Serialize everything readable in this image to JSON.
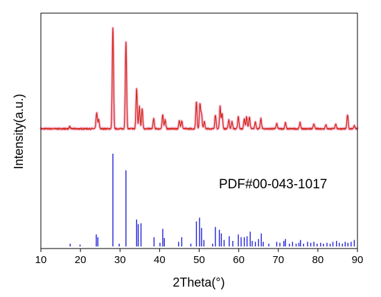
{
  "chart_data": {
    "type": "line",
    "xlabel": "2Theta(°)",
    "ylabel": "Intensity(a.u.)",
    "xlim": [
      10,
      90
    ],
    "x_ticks": [
      10,
      20,
      30,
      40,
      50,
      60,
      70,
      80,
      90
    ],
    "y_ticks_shown": false,
    "grid": false,
    "legend": "none",
    "annotation": "PDF#00-043-1017",
    "colors": {
      "pattern_line": "#d62a1c",
      "pattern_shadow": "#f4b8d8",
      "reference_sticks": "#1f1fd8",
      "axis": "#000000"
    },
    "series": [
      {
        "kind": "measured-pattern",
        "baseline": 3,
        "peaks": [
          {
            "x": 17.3,
            "y": 2
          },
          {
            "x": 24.1,
            "y": 16
          },
          {
            "x": 24.6,
            "y": 9
          },
          {
            "x": 28.2,
            "y": 100
          },
          {
            "x": 31.5,
            "y": 86
          },
          {
            "x": 34.2,
            "y": 40
          },
          {
            "x": 34.9,
            "y": 22
          },
          {
            "x": 35.6,
            "y": 20
          },
          {
            "x": 38.5,
            "y": 10
          },
          {
            "x": 40.8,
            "y": 14
          },
          {
            "x": 41.4,
            "y": 9
          },
          {
            "x": 45.0,
            "y": 8
          },
          {
            "x": 45.6,
            "y": 8
          },
          {
            "x": 49.3,
            "y": 27
          },
          {
            "x": 50.2,
            "y": 25
          },
          {
            "x": 50.6,
            "y": 15
          },
          {
            "x": 51.3,
            "y": 7
          },
          {
            "x": 54.1,
            "y": 14
          },
          {
            "x": 55.3,
            "y": 22
          },
          {
            "x": 55.8,
            "y": 15
          },
          {
            "x": 57.5,
            "y": 9
          },
          {
            "x": 58.3,
            "y": 7
          },
          {
            "x": 59.9,
            "y": 12
          },
          {
            "x": 61.4,
            "y": 10
          },
          {
            "x": 62.0,
            "y": 12
          },
          {
            "x": 62.7,
            "y": 12
          },
          {
            "x": 64.2,
            "y": 7
          },
          {
            "x": 65.6,
            "y": 10
          },
          {
            "x": 69.6,
            "y": 5
          },
          {
            "x": 71.8,
            "y": 6
          },
          {
            "x": 75.5,
            "y": 6
          },
          {
            "x": 79.0,
            "y": 5
          },
          {
            "x": 82.0,
            "y": 4
          },
          {
            "x": 84.5,
            "y": 5
          },
          {
            "x": 87.5,
            "y": 14
          },
          {
            "x": 89.2,
            "y": 3
          }
        ]
      },
      {
        "kind": "reference-sticks",
        "name": "PDF#00-043-1017",
        "sticks": [
          {
            "x": 17.4,
            "y": 3
          },
          {
            "x": 19.9,
            "y": 2
          },
          {
            "x": 24.0,
            "y": 13
          },
          {
            "x": 24.4,
            "y": 10
          },
          {
            "x": 28.2,
            "y": 100
          },
          {
            "x": 29.8,
            "y": 3
          },
          {
            "x": 31.5,
            "y": 82
          },
          {
            "x": 34.2,
            "y": 29
          },
          {
            "x": 34.6,
            "y": 24
          },
          {
            "x": 35.3,
            "y": 25
          },
          {
            "x": 38.6,
            "y": 10
          },
          {
            "x": 40.1,
            "y": 4
          },
          {
            "x": 40.8,
            "y": 19
          },
          {
            "x": 41.2,
            "y": 9
          },
          {
            "x": 44.8,
            "y": 5
          },
          {
            "x": 45.6,
            "y": 10
          },
          {
            "x": 47.9,
            "y": 3
          },
          {
            "x": 49.3,
            "y": 27
          },
          {
            "x": 50.1,
            "y": 31
          },
          {
            "x": 50.6,
            "y": 20
          },
          {
            "x": 51.2,
            "y": 7
          },
          {
            "x": 53.4,
            "y": 3
          },
          {
            "x": 54.1,
            "y": 21
          },
          {
            "x": 55.1,
            "y": 18
          },
          {
            "x": 55.6,
            "y": 14
          },
          {
            "x": 56.3,
            "y": 7
          },
          {
            "x": 57.6,
            "y": 11
          },
          {
            "x": 58.5,
            "y": 6
          },
          {
            "x": 59.9,
            "y": 13
          },
          {
            "x": 60.6,
            "y": 10
          },
          {
            "x": 61.4,
            "y": 10
          },
          {
            "x": 62.1,
            "y": 11
          },
          {
            "x": 62.9,
            "y": 16
          },
          {
            "x": 63.4,
            "y": 6
          },
          {
            "x": 64.2,
            "y": 5
          },
          {
            "x": 65.0,
            "y": 8
          },
          {
            "x": 65.7,
            "y": 14
          },
          {
            "x": 66.2,
            "y": 5
          },
          {
            "x": 67.6,
            "y": 3
          },
          {
            "x": 69.6,
            "y": 5
          },
          {
            "x": 70.4,
            "y": 4
          },
          {
            "x": 71.4,
            "y": 6
          },
          {
            "x": 71.8,
            "y": 8
          },
          {
            "x": 72.8,
            "y": 3
          },
          {
            "x": 73.6,
            "y": 5
          },
          {
            "x": 74.5,
            "y": 3
          },
          {
            "x": 75.2,
            "y": 4
          },
          {
            "x": 75.6,
            "y": 7
          },
          {
            "x": 76.4,
            "y": 3
          },
          {
            "x": 77.4,
            "y": 5
          },
          {
            "x": 78.2,
            "y": 4
          },
          {
            "x": 79.0,
            "y": 5
          },
          {
            "x": 79.8,
            "y": 3
          },
          {
            "x": 80.7,
            "y": 4
          },
          {
            "x": 81.4,
            "y": 3
          },
          {
            "x": 82.3,
            "y": 4
          },
          {
            "x": 83.1,
            "y": 3
          },
          {
            "x": 83.8,
            "y": 5
          },
          {
            "x": 84.7,
            "y": 6
          },
          {
            "x": 85.4,
            "y": 4
          },
          {
            "x": 86.2,
            "y": 3
          },
          {
            "x": 86.9,
            "y": 5
          },
          {
            "x": 87.6,
            "y": 4
          },
          {
            "x": 88.4,
            "y": 5
          },
          {
            "x": 89.2,
            "y": 7
          }
        ]
      }
    ]
  }
}
